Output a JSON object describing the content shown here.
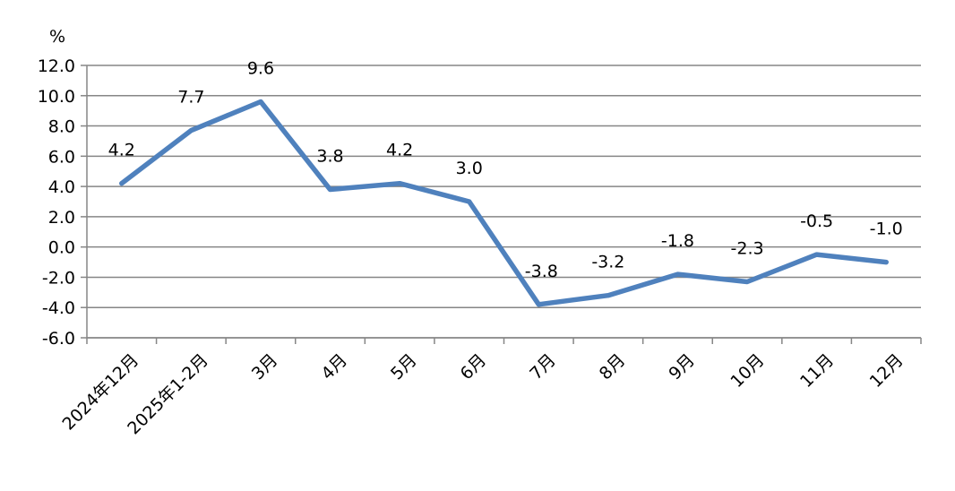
{
  "chart_data": {
    "type": "line",
    "unit": "%",
    "categories": [
      "2024年12月",
      "2025年1-2月",
      "3月",
      "4月",
      "5月",
      "6月",
      "7月",
      "8月",
      "9月",
      "10月",
      "11月",
      "12月"
    ],
    "series": [
      {
        "values": [
          4.2,
          7.7,
          9.6,
          3.8,
          4.2,
          3.0,
          -3.8,
          -3.2,
          -1.8,
          -2.3,
          -0.5,
          -1.0
        ],
        "labels": [
          "4.2",
          "7.7",
          "9.6",
          "3.8",
          "4.2",
          "3.0",
          "-3.8",
          "-3.2",
          "-1.8",
          "-2.3",
          "-0.5",
          "-1.0"
        ],
        "color": "#4f81bd"
      }
    ],
    "ylim": [
      -6,
      12
    ],
    "yticks": [
      "12.0",
      "10.0",
      "8.0",
      "6.0",
      "4.0",
      "2.0",
      "0.0",
      "-2.0",
      "-4.0",
      "-6.0"
    ],
    "ytick_values": [
      12,
      10,
      8,
      6,
      4,
      2,
      0,
      -2,
      -4,
      -6
    ],
    "grid": true,
    "grid_color": "#868686",
    "axis_color": "#868686"
  }
}
